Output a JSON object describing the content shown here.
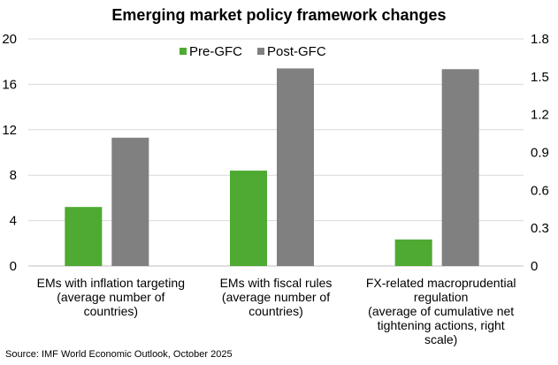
{
  "chart_data": {
    "type": "bar",
    "title": "Emerging market policy framework changes",
    "categories": [
      [
        "EMs with inflation targeting",
        "(average number of",
        "countries)"
      ],
      [
        "EMs with fiscal rules",
        "(average number of",
        "countries)"
      ],
      [
        "FX-related macroprudential",
        "regulation",
        "(average of cumulative net",
        "tightening actions, right",
        "scale)"
      ]
    ],
    "series": [
      {
        "name": "Pre-GFC",
        "color": "#4EAA32",
        "values": [
          5.2,
          8.4,
          0.21
        ],
        "axis": [
          "left",
          "left",
          "right"
        ]
      },
      {
        "name": "Post-GFC",
        "color": "#808080",
        "values": [
          11.3,
          17.4,
          1.56
        ],
        "axis": [
          "left",
          "left",
          "right"
        ]
      }
    ],
    "left_axis": {
      "ylim": [
        0,
        20
      ],
      "ticks": [
        "0",
        "4",
        "8",
        "12",
        "16",
        "20"
      ]
    },
    "right_axis": {
      "ylim": [
        0,
        1.8
      ],
      "ticks": [
        "0",
        "0.3",
        "0.6",
        "0.9",
        "1.2",
        "1.5",
        "1.8"
      ]
    },
    "grid": true,
    "legend": "top-center"
  },
  "source": "Source: IMF World Economic Outlook, October 2025"
}
